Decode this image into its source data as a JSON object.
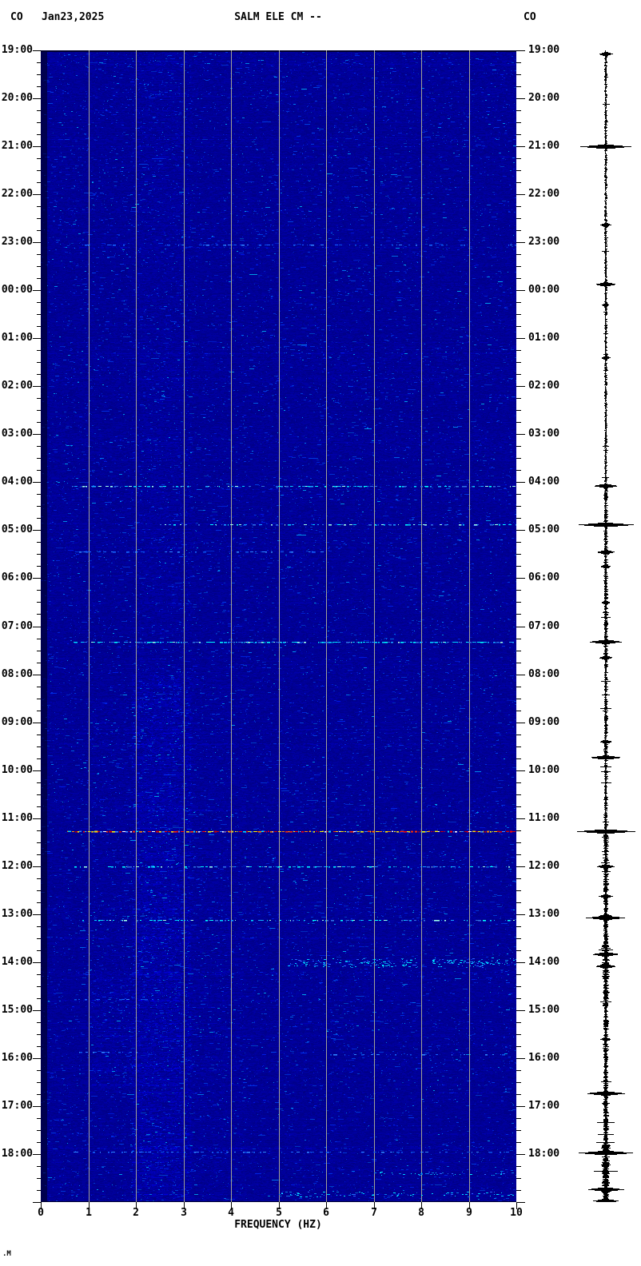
{
  "header": {
    "network_code_left": "CO",
    "date": "Jan23,2025",
    "title": "SALM ELE CM --",
    "network_code_right": "CO"
  },
  "footer": {
    "corner_mark": ".M"
  },
  "axes": {
    "x_label": "FREQUENCY (HZ)",
    "x_tick_labels": [
      "0",
      "1",
      "2",
      "3",
      "4",
      "5",
      "6",
      "7",
      "8",
      "9",
      "10"
    ],
    "hour_labels": [
      "19:00",
      "20:00",
      "21:00",
      "22:00",
      "23:00",
      "00:00",
      "01:00",
      "02:00",
      "03:00",
      "04:00",
      "05:00",
      "06:00",
      "07:00",
      "08:00",
      "09:00",
      "10:00",
      "11:00",
      "12:00",
      "13:00",
      "14:00",
      "15:00",
      "16:00",
      "17:00",
      "18:00"
    ],
    "minor_ticks_per_hour": 4
  },
  "colors": {
    "background": "#ffffff",
    "text": "#000000",
    "spectrogram_base": "#000092",
    "gridline": "#a2a296",
    "trace": "#000000"
  },
  "chart_data": {
    "type": "heatmap",
    "description": "24-hour seismic spectrogram from 19:00 Jan 23 2025 to 19:00 Jan 24, frequency 0-10 Hz, with parallel seismogram amplitude trace at right",
    "station": "SALM ELE CM --",
    "network": "CO",
    "date": "Jan23,2025",
    "x_axis": {
      "label": "FREQUENCY (HZ)",
      "min": 0,
      "max": 10,
      "gridlines_hz": [
        1,
        2,
        3,
        4,
        5,
        6,
        7,
        8,
        9
      ]
    },
    "y_axis": {
      "start_label": "19:00",
      "hours_total": 24,
      "minor_tick_minutes": 15
    },
    "palettes": {
      "blue": [
        "#0a50e6",
        "#1565ff",
        "#2f86ff"
      ],
      "cyan": [
        "#18a0ff",
        "#00d2ff",
        "#00ffff",
        "#2f6fe0",
        "#9fffe8"
      ],
      "cyanfuzz": [
        "#0a7ce6",
        "#00c8ff",
        "#2a62ff",
        "#00e8ff"
      ],
      "rainbow": [
        "#d40000",
        "#ff2e00",
        "#ff8400",
        "#ffd900",
        "#fffb00",
        "#00e1ff",
        "#ffffff",
        "#3f8cff",
        "#ff0000",
        "#c80000"
      ]
    },
    "noise_bands": [
      {
        "hz": [
          0,
          0.12
        ],
        "t": [
          0,
          24
        ],
        "mult": 0.5
      },
      {
        "hz": [
          1.9,
          3.15
        ],
        "t": [
          0,
          13
        ],
        "mult": 1.25
      },
      {
        "hz": [
          1.9,
          3.15
        ],
        "t": [
          13,
          24
        ],
        "mult": 1.8
      },
      {
        "hz": [
          1.05,
          1.9
        ],
        "t": [
          13.5,
          19.3
        ],
        "mult": 1.2
      },
      {
        "hz": [
          1.05,
          1.9
        ],
        "t": [
          19.3,
          21.7
        ],
        "mult": 1.45
      },
      {
        "hz": [
          3.15,
          4.3
        ],
        "t": [
          13,
          24
        ],
        "mult": 1.15
      }
    ],
    "events": [
      {
        "time": "23:03",
        "t": 4.05,
        "hz": [
          0.5,
          10
        ],
        "intensity": 0.2,
        "palette": "blue"
      },
      {
        "time": "04:04",
        "t": 9.07,
        "hz": [
          0.6,
          10
        ],
        "intensity": 0.5,
        "palette": "cyan"
      },
      {
        "time": "04:53",
        "t": 9.88,
        "hz": [
          2.5,
          10
        ],
        "intensity": 0.26,
        "palette": "cyan"
      },
      {
        "time": "05:27",
        "t": 10.45,
        "hz": [
          0.8,
          6
        ],
        "intensity": 0.13,
        "palette": "blue"
      },
      {
        "time": "07:19",
        "t": 12.32,
        "hz": [
          0.6,
          10
        ],
        "intensity": 0.75,
        "palette": "cyan"
      },
      {
        "time": "11:16",
        "t": 16.27,
        "hz": [
          0.55,
          10
        ],
        "intensity": 1.0,
        "palette": "rainbow"
      },
      {
        "time": "12:00",
        "t": 17.0,
        "hz": [
          0.7,
          10
        ],
        "intensity": 0.45,
        "palette": "cyan"
      },
      {
        "time": "13:07",
        "t": 18.12,
        "hz": [
          0.8,
          10
        ],
        "intensity": 0.42,
        "palette": "cyan"
      },
      {
        "time": "14:00",
        "t": 19.0,
        "hz": [
          5.2,
          10
        ],
        "intensity": 0.5,
        "palette": "cyanfuzz",
        "thick": 12
      },
      {
        "time": "14:46",
        "t": 19.77,
        "hz": [
          0.7,
          2.6
        ],
        "intensity": 0.2,
        "palette": "blue"
      },
      {
        "time": "15:52",
        "t": 20.87,
        "hz": [
          0.8,
          2.3
        ],
        "intensity": 0.16,
        "palette": "blue"
      },
      {
        "time": "15:55",
        "t": 20.92,
        "hz": [
          6,
          10
        ],
        "intensity": 0.17,
        "palette": "blue"
      },
      {
        "time": "17:57",
        "t": 22.95,
        "hz": [
          0.5,
          10
        ],
        "intensity": 0.22,
        "palette": "blue"
      },
      {
        "time": "18:24",
        "t": 23.4,
        "hz": [
          7,
          10
        ],
        "intensity": 0.3,
        "palette": "cyanfuzz",
        "thick": 5
      },
      {
        "time": "18:50",
        "t": 23.83,
        "hz": [
          5,
          10
        ],
        "intensity": 0.32,
        "palette": "cyanfuzz",
        "thick": 7
      }
    ],
    "seismogram": {
      "baseline_segments": [
        {
          "t": [
            0,
            9
          ],
          "a": 1.2
        },
        {
          "t": [
            9,
            16.2
          ],
          "a": 1.7
        },
        {
          "t": [
            16.2,
            22.8
          ],
          "a": 2.4
        },
        {
          "t": [
            18.6,
            19.4
          ],
          "a": 3.4
        },
        {
          "t": [
            22.8,
            24
          ],
          "a": 4.0
        }
      ],
      "events": [
        {
          "time": "19:04",
          "t": 0.07,
          "amp": 9
        },
        {
          "time": "21:00",
          "t": 2.0,
          "amp": 33
        },
        {
          "time": "22:38",
          "t": 3.63,
          "amp": 7
        },
        {
          "time": "23:52",
          "t": 4.87,
          "amp": 14
        },
        {
          "time": "00:18",
          "t": 5.3,
          "amp": 5
        },
        {
          "time": "01:24",
          "t": 6.4,
          "amp": 6
        },
        {
          "time": "04:04",
          "t": 9.07,
          "amp": 16
        },
        {
          "time": "04:53",
          "t": 9.88,
          "amp": 37
        },
        {
          "time": "05:27",
          "t": 10.45,
          "amp": 12
        },
        {
          "time": "05:45",
          "t": 10.75,
          "amp": 7
        },
        {
          "time": "06:30",
          "t": 11.5,
          "amp": 6
        },
        {
          "time": "07:19",
          "t": 12.32,
          "amp": 22
        },
        {
          "time": "07:39",
          "t": 12.65,
          "amp": 9
        },
        {
          "time": "09:24",
          "t": 14.4,
          "amp": 8
        },
        {
          "time": "09:44",
          "t": 14.73,
          "amp": 21
        },
        {
          "time": "11:16",
          "t": 16.27,
          "amp": 38
        },
        {
          "time": "12:00",
          "t": 17.0,
          "amp": 12
        },
        {
          "time": "12:37",
          "t": 17.62,
          "amp": 9
        },
        {
          "time": "13:04",
          "t": 18.07,
          "amp": 25
        },
        {
          "time": "13:50",
          "t": 18.83,
          "amp": 18
        },
        {
          "time": "14:05",
          "t": 19.08,
          "amp": 14
        },
        {
          "time": "15:36",
          "t": 20.6,
          "amp": 7
        },
        {
          "time": "16:44",
          "t": 21.73,
          "amp": 26
        },
        {
          "time": "17:58",
          "t": 22.97,
          "amp": 36
        },
        {
          "time": "18:44",
          "t": 23.73,
          "amp": 24
        },
        {
          "time": "18:58",
          "t": 23.97,
          "amp": 17
        }
      ]
    }
  }
}
